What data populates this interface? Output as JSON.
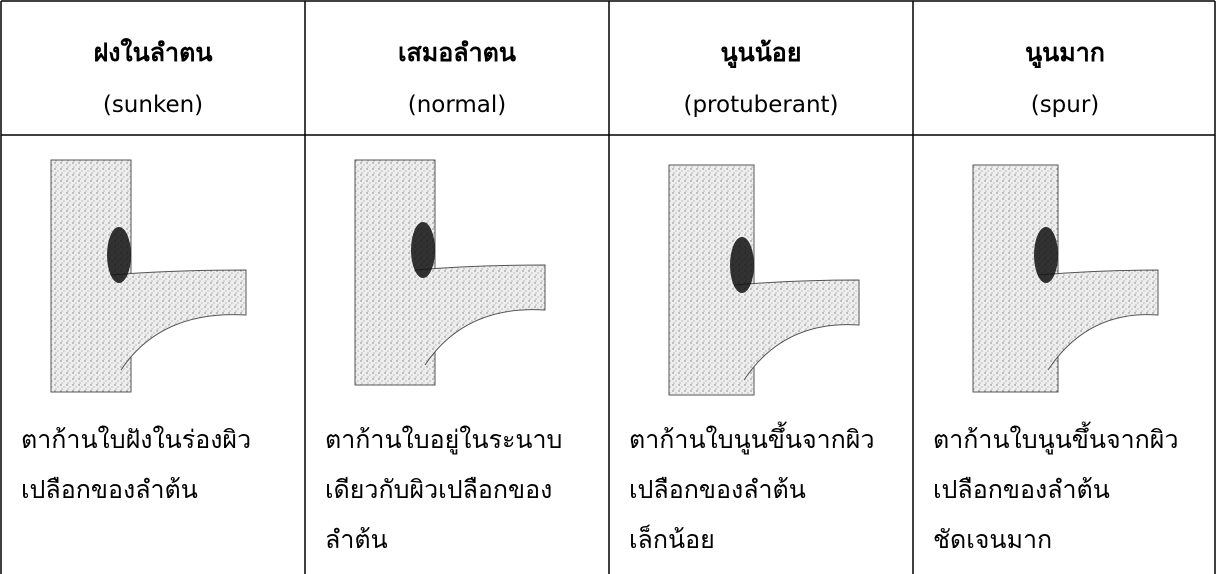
{
  "table": {
    "columns": [
      {
        "title": "ฝงในลำตน",
        "subtitle": "(sunken)",
        "description": [
          "ตาก้านใบฝังในร่องผิว",
          "เปลือกของลำต้น"
        ]
      },
      {
        "title": "เสมอลำตน",
        "subtitle": "(normal)",
        "description": [
          "ตาก้านใบอยู่ในระนาบ",
          "เดียวกับผิวเปลือกของ",
          "ลำต้น"
        ]
      },
      {
        "title": "นูนน้อย",
        "subtitle": "(protuberant)",
        "description": [
          "ตาก้านใบนูนขึ้นจากผิว",
          "เปลือกของลำต้น",
          "เล็กน้อย"
        ]
      },
      {
        "title": "นูนมาก",
        "subtitle": "(spur)",
        "description": [
          "ตาก้านใบนูนขึ้นจากผิว",
          "เปลือกของลำต้น",
          "ชัดเจนมาก"
        ]
      }
    ]
  }
}
